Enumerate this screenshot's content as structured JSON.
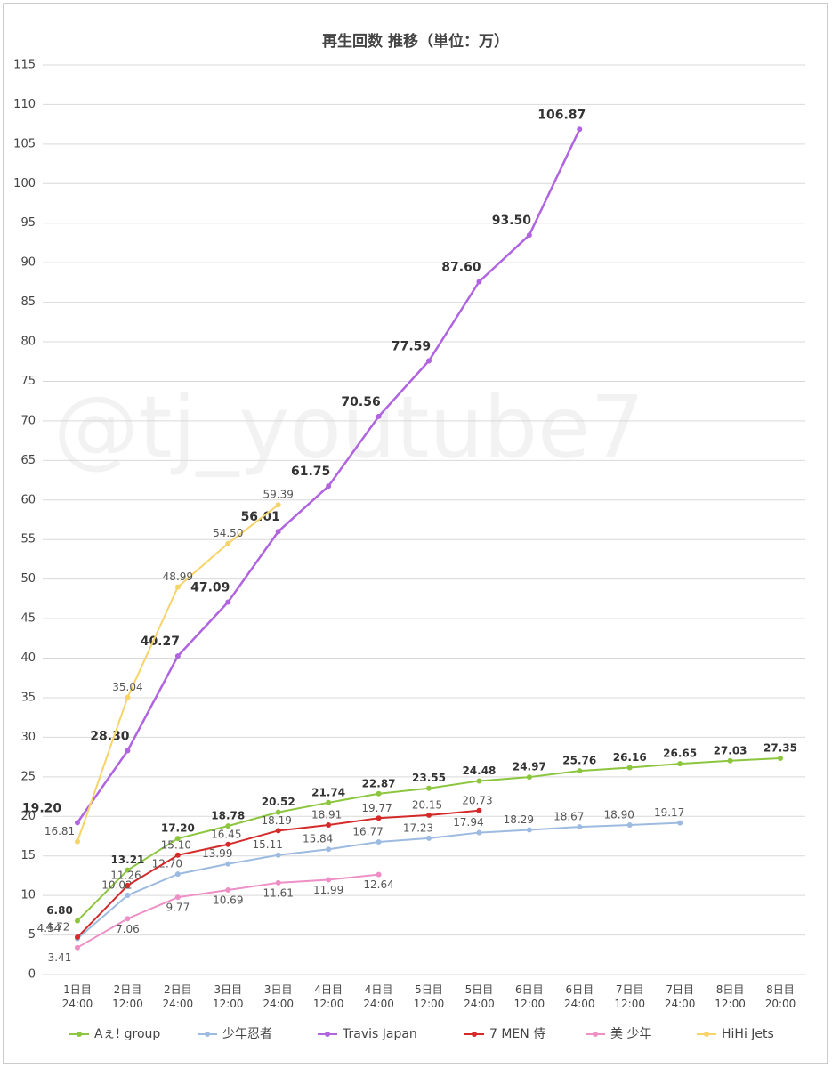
{
  "chart_data": {
    "type": "line",
    "title": "再生回数 推移（単位：万）",
    "watermark": "@tj_youtube7",
    "categories": [
      "1日目\n24:00",
      "2日目\n12:00",
      "2日目\n24:00",
      "3日目\n12:00",
      "3日目\n24:00",
      "4日目\n12:00",
      "4日目\n24:00",
      "5日目\n12:00",
      "5日目\n24:00",
      "6日目\n12:00",
      "6日目\n24:00",
      "7日目\n12:00",
      "7日目\n24:00",
      "8日目\n12:00",
      "8日目\n20:00"
    ],
    "series": [
      {
        "name": "Aぇ! group",
        "color": "#8cc63f",
        "values": [
          6.8,
          13.21,
          17.2,
          18.78,
          20.52,
          21.74,
          22.87,
          23.55,
          24.48,
          24.97,
          25.76,
          26.16,
          26.65,
          27.03,
          27.35
        ],
        "value_labels": [
          "6.80",
          "13.21",
          "17.20",
          "18.78",
          "20.52",
          "21.74",
          "22.87",
          "23.55",
          "24.48",
          "24.97",
          "25.76",
          "26.16",
          "26.65",
          "27.03",
          "27.35"
        ]
      },
      {
        "name": "少年忍者",
        "color": "#9dbbe0",
        "values": [
          4.54,
          10.02,
          12.7,
          13.99,
          15.11,
          15.84,
          16.77,
          17.23,
          17.94,
          18.29,
          18.67,
          18.9,
          19.17,
          null,
          null
        ],
        "value_labels": [
          "4.54",
          "10.02",
          "12.70",
          "13.99",
          "15.11",
          "15.84",
          "16.77",
          "17.23",
          "17.94",
          "18.29",
          "18.67",
          "18.90",
          "19.17",
          null,
          null
        ]
      },
      {
        "name": "Travis Japan",
        "color": "#b064e0",
        "values": [
          19.2,
          28.3,
          40.27,
          47.09,
          56.01,
          61.75,
          70.56,
          77.59,
          87.6,
          93.5,
          106.87,
          null,
          null,
          null,
          null
        ],
        "value_labels": [
          "19.20",
          "28.30",
          "40.27",
          "47.09",
          "56.01",
          "61.75",
          "70.56",
          "77.59",
          "87.60",
          "93.50",
          "106.87",
          null,
          null,
          null,
          null
        ]
      },
      {
        "name": "7 MEN 侍",
        "color": "#d42a2a",
        "values": [
          4.72,
          11.26,
          15.1,
          16.45,
          18.19,
          18.91,
          19.77,
          20.15,
          20.73,
          null,
          null,
          null,
          null,
          null,
          null
        ],
        "value_labels": [
          "4.72",
          "11.26",
          "15.10",
          "16.45",
          "18.19",
          "18.91",
          "19.77",
          "20.15",
          "20.73",
          null,
          null,
          null,
          null,
          null,
          null
        ]
      },
      {
        "name": "美 少年",
        "color": "#ee8fc6",
        "values": [
          3.41,
          7.06,
          9.77,
          10.69,
          11.61,
          11.99,
          12.64,
          null,
          null,
          null,
          null,
          null,
          null,
          null,
          null
        ],
        "value_labels": [
          "3.41",
          "7.06",
          "9.77",
          "10.69",
          "11.61",
          "11.99",
          "12.64",
          null,
          null,
          null,
          null,
          null,
          null,
          null,
          null
        ]
      },
      {
        "name": "HiHi Jets",
        "color": "#f6d46a",
        "values": [
          16.81,
          35.04,
          48.99,
          54.5,
          59.39,
          null,
          null,
          null,
          null,
          null,
          null,
          null,
          null,
          null,
          null
        ],
        "value_labels": [
          "16.81",
          "35.04",
          "48.99",
          "54.50",
          "59.39",
          null,
          null,
          null,
          null,
          null,
          null,
          null,
          null,
          null,
          null
        ]
      }
    ],
    "ylim": [
      0,
      115
    ],
    "yticks": [
      0,
      5,
      10,
      15,
      20,
      25,
      30,
      35,
      40,
      45,
      50,
      55,
      60,
      65,
      70,
      75,
      80,
      85,
      90,
      95,
      100,
      105,
      110,
      115
    ],
    "grid": true,
    "legend": "bottom"
  }
}
